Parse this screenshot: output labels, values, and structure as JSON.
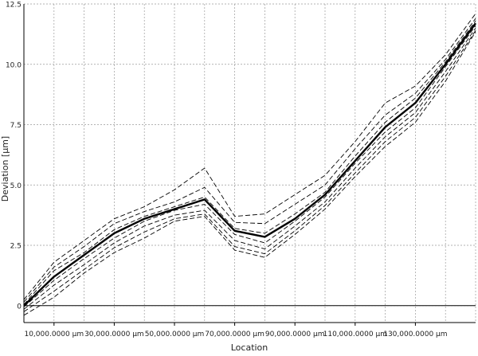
{
  "chart_data": {
    "type": "line",
    "xlabel": "Location",
    "ylabel": "Deviation [µm]",
    "xlim": [
      0,
      150000000
    ],
    "ylim": [
      -0.7,
      12.5
    ],
    "grid": true,
    "y_ticks": [
      0,
      2.5,
      5.0,
      7.5,
      10.0,
      12.5
    ],
    "y_tick_labels": [
      "0",
      "2.5",
      "5.0",
      "7.5",
      "10.0",
      "12.5"
    ],
    "x_grid": [
      0,
      10000000,
      20000000,
      30000000,
      40000000,
      50000000,
      60000000,
      70000000,
      80000000,
      90000000,
      100000000,
      110000000,
      120000000,
      130000000,
      140000000,
      150000000
    ],
    "x_tick_values": [
      10000000,
      30000000,
      50000000,
      70000000,
      90000000,
      110000000,
      130000000
    ],
    "x_tick_labels": [
      "10,000.0000 µm",
      "30,000.0000 µm",
      "50,000.0000 µm",
      "70,000.0000 µm",
      "90,000.0000 µm",
      "110,000.0000 µm",
      "130,000.0000 µm"
    ],
    "zero_line": 0,
    "x": [
      0,
      10000000,
      20000000,
      30000000,
      40000000,
      50000000,
      60000000,
      70000000,
      80000000,
      90000000,
      100000000,
      110000000,
      120000000,
      130000000,
      140000000,
      150000000
    ],
    "series": [
      {
        "style": "solid",
        "color": "#000000",
        "values": [
          0.0,
          1.2,
          2.1,
          3.0,
          3.6,
          4.0,
          4.4,
          3.1,
          2.85,
          3.6,
          4.6,
          6.0,
          7.4,
          8.4,
          10.0,
          11.7
        ]
      },
      {
        "style": "dashed",
        "color": "#000000",
        "values": [
          0.25,
          1.8,
          2.7,
          3.6,
          4.1,
          4.8,
          5.7,
          3.7,
          3.8,
          4.6,
          5.4,
          6.8,
          8.4,
          9.1,
          10.4,
          12.1
        ]
      },
      {
        "style": "dashed",
        "color": "#000000",
        "values": [
          0.15,
          1.6,
          2.45,
          3.4,
          3.9,
          4.3,
          4.9,
          3.45,
          3.4,
          4.2,
          5.0,
          6.5,
          7.9,
          8.8,
          10.2,
          11.9
        ]
      },
      {
        "style": "dashed",
        "color": "#000000",
        "values": [
          0.05,
          1.45,
          2.2,
          3.15,
          3.7,
          4.1,
          4.5,
          3.2,
          3.0,
          3.8,
          4.7,
          6.2,
          7.6,
          8.6,
          10.1,
          11.8
        ]
      },
      {
        "style": "dashed",
        "color": "#000000",
        "values": [
          -0.05,
          1.05,
          1.95,
          2.8,
          3.5,
          3.95,
          4.2,
          2.95,
          2.6,
          3.5,
          4.5,
          5.9,
          7.2,
          8.2,
          9.9,
          11.6
        ]
      },
      {
        "style": "dashed",
        "color": "#000000",
        "values": [
          -0.15,
          0.85,
          1.7,
          2.6,
          3.3,
          3.75,
          3.95,
          2.7,
          2.35,
          3.3,
          4.3,
          5.7,
          7.0,
          8.0,
          9.7,
          11.5
        ]
      },
      {
        "style": "dashed",
        "color": "#000000",
        "values": [
          -0.25,
          0.6,
          1.5,
          2.4,
          3.05,
          3.6,
          3.8,
          2.45,
          2.15,
          3.1,
          4.15,
          5.5,
          6.8,
          7.8,
          9.5,
          11.4
        ]
      },
      {
        "style": "dashed",
        "color": "#000000",
        "values": [
          -0.4,
          0.35,
          1.35,
          2.2,
          2.8,
          3.5,
          3.7,
          2.3,
          2.0,
          2.95,
          4.0,
          5.35,
          6.6,
          7.6,
          9.3,
          11.35
        ]
      }
    ]
  }
}
